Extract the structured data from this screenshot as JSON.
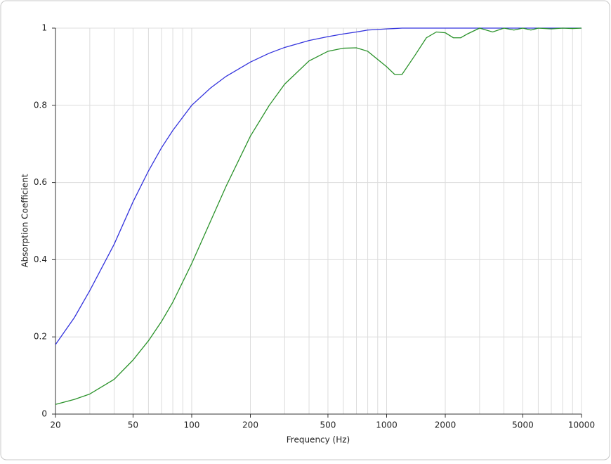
{
  "chart_data": {
    "type": "line",
    "xlabel": "Frequency (Hz)",
    "ylabel": "Absorption Coefficient",
    "xscale": "log",
    "grid": true,
    "x": [
      20,
      25,
      30,
      40,
      50,
      60,
      70,
      80,
      100,
      125,
      150,
      200,
      250,
      300,
      400,
      500,
      600,
      700,
      800,
      1000,
      1100,
      1200,
      1400,
      1600,
      1800,
      2000,
      2200,
      2400,
      2600,
      3000,
      3500,
      4000,
      4500,
      5000,
      5500,
      6000,
      7000,
      8000,
      9000,
      10000
    ],
    "series": [
      {
        "color": "#3333dd",
        "values": [
          0.18,
          0.25,
          0.32,
          0.44,
          0.55,
          0.63,
          0.69,
          0.735,
          0.8,
          0.845,
          0.875,
          0.912,
          0.935,
          0.95,
          0.968,
          0.978,
          0.985,
          0.99,
          0.995,
          0.998,
          0.999,
          1,
          1,
          1,
          1,
          1,
          1,
          1,
          1,
          1,
          1,
          1,
          1,
          1,
          1,
          1,
          1,
          1,
          1,
          1
        ]
      },
      {
        "color": "#2a922a",
        "values": [
          0.025,
          0.038,
          0.052,
          0.09,
          0.14,
          0.19,
          0.24,
          0.29,
          0.39,
          0.5,
          0.59,
          0.72,
          0.8,
          0.855,
          0.915,
          0.94,
          0.948,
          0.949,
          0.94,
          0.9,
          0.88,
          0.88,
          0.93,
          0.975,
          0.99,
          0.988,
          0.975,
          0.975,
          0.985,
          1.0,
          0.99,
          1.0,
          0.995,
          1.0,
          0.995,
          1.0,
          0.998,
          1.0,
          0.999,
          1.0
        ]
      }
    ],
    "xlim": [
      20,
      10000
    ],
    "xticks": [
      20,
      50,
      100,
      200,
      500,
      1000,
      2000,
      5000,
      10000
    ],
    "xgrid_minor": [
      30,
      40,
      60,
      70,
      80,
      90,
      300,
      400,
      600,
      700,
      800,
      900,
      3000,
      4000,
      6000,
      7000,
      8000,
      9000
    ],
    "ylim": [
      0,
      1
    ],
    "yticks": [
      0,
      0.2,
      0.4,
      0.6,
      0.8,
      1
    ]
  }
}
